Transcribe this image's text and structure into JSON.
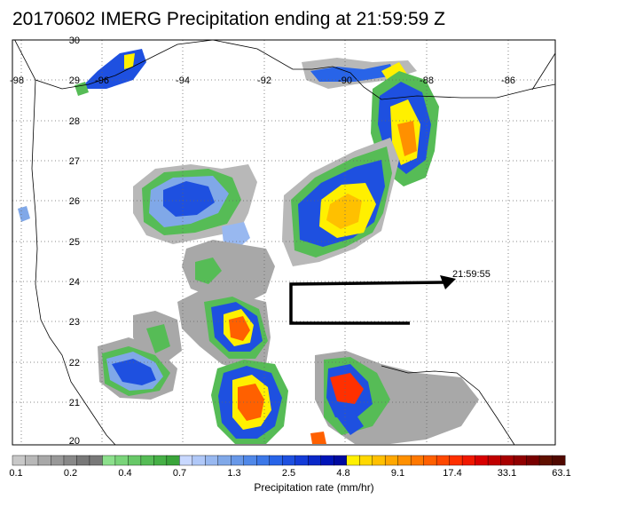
{
  "title": "20170602 IMERG Precipitation ending at 21:59:59 Z",
  "map": {
    "lon_labels": [
      "-98",
      "-96",
      "-94",
      "-92",
      "-90",
      "-88",
      "-86"
    ],
    "lat_labels": [
      "30",
      "29",
      "28",
      "27",
      "26",
      "25",
      "24",
      "23",
      "22",
      "21",
      "20"
    ],
    "track_label": "21:59:55"
  },
  "colorbar": {
    "title": "Precipitation rate (mm/hr)",
    "tick_labels": [
      "0.1",
      "0.2",
      "0.4",
      "0.7",
      "1.3",
      "2.5",
      "4.8",
      "9.1",
      "17.4",
      "33.1",
      "63.1"
    ],
    "colors": [
      "#c8c8c8",
      "#b8b8b8",
      "#a8a8a8",
      "#989898",
      "#888888",
      "#787878",
      "#787878",
      "#8ce08c",
      "#7ad47a",
      "#68c868",
      "#56bc56",
      "#46b046",
      "#3aa43a",
      "#c8d8ff",
      "#b0c8f8",
      "#98b8f0",
      "#80a8e8",
      "#6898e8",
      "#5088e8",
      "#3c78e8",
      "#2864e8",
      "#1e50e0",
      "#143cd8",
      "#0a28c8",
      "#0014b8",
      "#000aa0",
      "#fff000",
      "#ffd800",
      "#ffc000",
      "#ffa800",
      "#ff9000",
      "#ff7800",
      "#ff6000",
      "#ff4800",
      "#ff3000",
      "#f01800",
      "#d80000",
      "#c00000",
      "#a80000",
      "#900000",
      "#780000",
      "#601000",
      "#500800"
    ]
  }
}
